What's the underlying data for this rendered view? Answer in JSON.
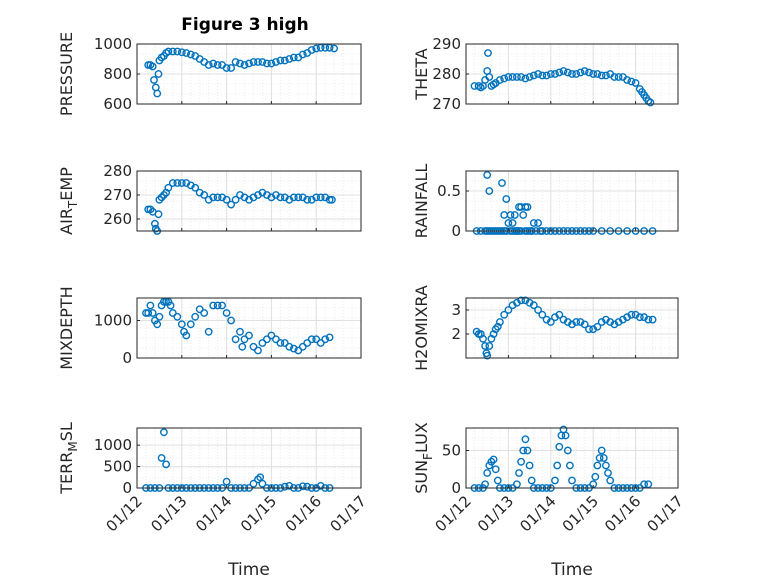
{
  "colors": {
    "marker": "#0072BD",
    "axis": "#262626",
    "grid": "#e0e0e0",
    "minorgrid": "#ececec"
  },
  "figure_title": "Figure 3 high",
  "chart_data": [
    {
      "type": "scatter",
      "id": "pressure",
      "title": "Figure 3 high",
      "ylabel": "PRESSURE",
      "ylabel_sub": "",
      "ylabel_tail": "",
      "xlabel": "",
      "xlim": [
        0,
        5
      ],
      "ylim": [
        600,
        1000
      ],
      "yticks": [
        600,
        800,
        1000
      ],
      "yticklabels": [
        "600",
        "800",
        "1000"
      ],
      "xticks": [],
      "xticklabels": [],
      "x": [
        0.25,
        0.3,
        0.35,
        0.38,
        0.42,
        0.45,
        0.48,
        0.5,
        0.55,
        0.6,
        0.65,
        0.7,
        0.8,
        0.9,
        1.0,
        1.1,
        1.2,
        1.3,
        1.4,
        1.5,
        1.6,
        1.7,
        1.8,
        1.9,
        2.0,
        2.1,
        2.2,
        2.3,
        2.4,
        2.5,
        2.6,
        2.7,
        2.8,
        2.9,
        3.0,
        3.1,
        3.2,
        3.3,
        3.4,
        3.5,
        3.6,
        3.7,
        3.8,
        3.9,
        4.0,
        4.1,
        4.2,
        4.3,
        4.4
      ],
      "y": [
        860,
        860,
        850,
        760,
        710,
        670,
        800,
        890,
        910,
        920,
        940,
        950,
        950,
        950,
        945,
        940,
        930,
        920,
        900,
        880,
        860,
        870,
        860,
        860,
        840,
        840,
        880,
        870,
        860,
        870,
        880,
        880,
        880,
        870,
        870,
        880,
        890,
        890,
        900,
        910,
        910,
        930,
        940,
        960,
        970,
        975,
        975,
        975,
        970
      ]
    },
    {
      "type": "scatter",
      "id": "theta",
      "ylabel": "THETA",
      "ylabel_sub": "",
      "ylabel_tail": "",
      "xlabel": "",
      "xlim": [
        0,
        5
      ],
      "ylim": [
        270,
        290
      ],
      "yticks": [
        270,
        280,
        290
      ],
      "yticklabels": [
        "270",
        "280",
        "290"
      ],
      "xticks": [],
      "xticklabels": [],
      "x": [
        0.2,
        0.3,
        0.35,
        0.4,
        0.45,
        0.5,
        0.52,
        0.55,
        0.6,
        0.65,
        0.7,
        0.8,
        0.9,
        1.0,
        1.1,
        1.2,
        1.3,
        1.4,
        1.5,
        1.6,
        1.7,
        1.8,
        1.9,
        2.0,
        2.1,
        2.2,
        2.3,
        2.4,
        2.5,
        2.6,
        2.7,
        2.8,
        2.9,
        3.0,
        3.1,
        3.2,
        3.3,
        3.4,
        3.5,
        3.6,
        3.7,
        3.8,
        3.9,
        4.0,
        4.1,
        4.15,
        4.2,
        4.25,
        4.3,
        4.35
      ],
      "y": [
        276,
        276,
        275.5,
        276,
        278,
        281,
        287,
        279,
        276,
        276.5,
        277,
        278,
        278.5,
        279,
        279,
        279,
        279,
        278.5,
        279,
        279.5,
        280,
        279.5,
        279.5,
        280,
        280,
        280.5,
        281,
        280.5,
        280,
        280,
        280.5,
        281,
        280.5,
        280,
        280,
        279.5,
        279.5,
        280,
        279,
        279,
        279,
        278,
        277.5,
        277,
        275,
        274,
        273,
        272,
        271,
        270.5
      ]
    },
    {
      "type": "scatter",
      "id": "air_temp",
      "ylabel": "AIR",
      "ylabel_sub": "T",
      "ylabel_tail": "EMP",
      "xlabel": "",
      "xlim": [
        0,
        5
      ],
      "ylim": [
        255,
        280
      ],
      "yticks": [
        260,
        270,
        280
      ],
      "yticklabels": [
        "260",
        "270",
        "280"
      ],
      "xticks": [],
      "xticklabels": [],
      "x": [
        0.25,
        0.3,
        0.35,
        0.4,
        0.42,
        0.45,
        0.48,
        0.5,
        0.55,
        0.6,
        0.65,
        0.7,
        0.8,
        0.9,
        1.0,
        1.1,
        1.2,
        1.3,
        1.4,
        1.5,
        1.6,
        1.7,
        1.8,
        1.9,
        2.0,
        2.1,
        2.2,
        2.3,
        2.4,
        2.5,
        2.6,
        2.7,
        2.8,
        2.9,
        3.0,
        3.1,
        3.2,
        3.3,
        3.4,
        3.5,
        3.6,
        3.7,
        3.8,
        3.9,
        4.0,
        4.1,
        4.2,
        4.3,
        4.35
      ],
      "y": [
        264,
        264,
        263,
        258,
        256,
        255,
        262,
        268,
        269,
        270,
        271,
        273,
        275,
        275,
        275,
        275,
        274,
        273,
        271,
        270,
        268,
        269,
        269,
        269,
        268,
        266,
        268,
        270,
        269,
        268,
        269,
        270,
        271,
        270,
        269,
        270,
        269,
        269,
        268,
        269,
        269,
        269,
        268,
        268,
        269,
        269,
        269,
        268,
        268
      ]
    },
    {
      "type": "scatter",
      "id": "rainfall",
      "ylabel": "RAINFALL",
      "ylabel_sub": "",
      "ylabel_tail": "",
      "xlabel": "",
      "xlim": [
        0,
        5
      ],
      "ylim": [
        0,
        0.75
      ],
      "yticks": [
        0,
        0.5
      ],
      "yticklabels": [
        "0",
        "0.5"
      ],
      "xticks": [],
      "xticklabels": [],
      "x": [
        0.25,
        0.35,
        0.45,
        0.5,
        0.55,
        0.6,
        0.65,
        0.7,
        0.75,
        0.8,
        0.85,
        0.9,
        0.95,
        1.0,
        1.05,
        1.1,
        1.15,
        1.2,
        1.25,
        1.3,
        1.35,
        1.4,
        1.45,
        1.5,
        1.55,
        1.6,
        1.65,
        1.7,
        1.8,
        1.9,
        2.0,
        2.1,
        2.2,
        2.3,
        2.4,
        2.5,
        2.6,
        2.7,
        2.8,
        2.9,
        3.0,
        3.2,
        3.4,
        3.6,
        3.8,
        4.0,
        4.2,
        4.4,
        0.5,
        0.55,
        0.85,
        0.9,
        0.95,
        1.05,
        1.1,
        1.15,
        1.2,
        1.25,
        1.3,
        1.4,
        1.45,
        1.55,
        1.75
      ],
      "y": [
        0,
        0,
        0,
        0.7,
        0.5,
        0,
        0,
        0,
        0,
        0,
        0.6,
        0.2,
        0.4,
        0.1,
        0.2,
        0.1,
        0.2,
        0,
        0.3,
        0.3,
        0.2,
        0.3,
        0.3,
        0,
        0,
        0.1,
        0,
        0.1,
        0,
        0,
        0,
        0,
        0,
        0,
        0,
        0,
        0,
        0,
        0,
        0,
        0,
        0,
        0,
        0,
        0,
        0,
        0,
        0,
        0,
        0,
        0,
        0,
        0,
        0,
        0,
        0,
        0,
        0,
        0,
        0,
        0,
        0,
        0
      ]
    },
    {
      "type": "scatter",
      "id": "mixdepth",
      "ylabel": "MIXDEPTH",
      "ylabel_sub": "",
      "ylabel_tail": "",
      "xlabel": "",
      "xlim": [
        0,
        5
      ],
      "ylim": [
        0,
        1600
      ],
      "yticks": [
        0,
        1000
      ],
      "yticklabels": [
        "0",
        "1000"
      ],
      "xticks": [],
      "xticklabels": [],
      "x": [
        0.2,
        0.25,
        0.3,
        0.35,
        0.4,
        0.45,
        0.5,
        0.55,
        0.6,
        0.65,
        0.7,
        0.75,
        0.8,
        0.9,
        1.0,
        1.05,
        1.1,
        1.2,
        1.3,
        1.4,
        1.5,
        1.6,
        1.7,
        1.8,
        1.9,
        2.0,
        2.1,
        2.2,
        2.3,
        2.35,
        2.4,
        2.5,
        2.6,
        2.7,
        2.8,
        2.9,
        3.0,
        3.1,
        3.2,
        3.3,
        3.4,
        3.5,
        3.6,
        3.7,
        3.8,
        3.9,
        4.0,
        4.1,
        4.2,
        4.3
      ],
      "y": [
        1200,
        1200,
        1400,
        1200,
        1000,
        900,
        1100,
        1400,
        1500,
        1500,
        1500,
        1400,
        1200,
        1100,
        900,
        700,
        600,
        900,
        1100,
        1300,
        1200,
        700,
        1400,
        1400,
        1400,
        1200,
        1000,
        500,
        700,
        300,
        500,
        600,
        300,
        200,
        400,
        500,
        600,
        500,
        400,
        400,
        300,
        250,
        200,
        300,
        400,
        500,
        500,
        400,
        500,
        550
      ]
    },
    {
      "type": "scatter",
      "id": "h2omixra",
      "ylabel": "H2OMIXRA",
      "ylabel_sub": "",
      "ylabel_tail": "",
      "xlabel": "",
      "xlim": [
        0,
        5
      ],
      "ylim": [
        1,
        3.5
      ],
      "yticks": [
        2,
        3
      ],
      "yticklabels": [
        "2",
        "3"
      ],
      "xticks": [],
      "xticklabels": [],
      "x": [
        0.25,
        0.3,
        0.35,
        0.4,
        0.45,
        0.48,
        0.5,
        0.55,
        0.6,
        0.65,
        0.7,
        0.75,
        0.8,
        0.9,
        1.0,
        1.1,
        1.2,
        1.3,
        1.4,
        1.5,
        1.6,
        1.7,
        1.8,
        1.9,
        2.0,
        2.1,
        2.2,
        2.3,
        2.4,
        2.5,
        2.6,
        2.7,
        2.8,
        2.9,
        3.0,
        3.1,
        3.2,
        3.3,
        3.4,
        3.5,
        3.6,
        3.7,
        3.8,
        3.9,
        4.0,
        4.1,
        4.2,
        4.3,
        4.4
      ],
      "y": [
        2.1,
        2.0,
        2.0,
        1.8,
        1.5,
        1.2,
        1.1,
        1.5,
        1.8,
        2.0,
        2.2,
        2.3,
        2.5,
        2.8,
        3.0,
        3.2,
        3.3,
        3.4,
        3.4,
        3.3,
        3.2,
        3.0,
        2.8,
        2.6,
        2.5,
        2.7,
        2.8,
        2.6,
        2.5,
        2.4,
        2.5,
        2.5,
        2.4,
        2.2,
        2.2,
        2.3,
        2.5,
        2.6,
        2.5,
        2.4,
        2.5,
        2.6,
        2.7,
        2.8,
        2.8,
        2.7,
        2.7,
        2.6,
        2.6
      ]
    },
    {
      "type": "scatter",
      "id": "terr_msl",
      "ylabel": "TERR",
      "ylabel_sub": "M",
      "ylabel_tail": "SL",
      "xlabel": "Time",
      "xlim": [
        0,
        5
      ],
      "ylim": [
        0,
        1400
      ],
      "yticks": [
        0,
        500,
        1000
      ],
      "yticklabels": [
        "0",
        "500",
        "1000"
      ],
      "xticks": [
        0,
        1,
        2,
        3,
        4,
        5
      ],
      "xticklabels": [
        "01/12",
        "01/13",
        "01/14",
        "01/15",
        "01/16",
        "01/17"
      ],
      "x": [
        0.2,
        0.3,
        0.4,
        0.5,
        0.55,
        0.6,
        0.65,
        0.7,
        0.8,
        0.9,
        1.0,
        1.1,
        1.2,
        1.3,
        1.4,
        1.5,
        1.6,
        1.7,
        1.8,
        1.9,
        2.0,
        2.1,
        2.2,
        2.3,
        2.4,
        2.5,
        2.6,
        2.7,
        2.75,
        2.8,
        2.9,
        3.0,
        3.1,
        3.2,
        3.3,
        3.4,
        3.5,
        3.6,
        3.7,
        3.8,
        3.9,
        4.0,
        4.1,
        4.2,
        4.3
      ],
      "y": [
        0,
        0,
        0,
        0,
        700,
        1300,
        550,
        0,
        0,
        0,
        0,
        0,
        0,
        0,
        0,
        0,
        0,
        0,
        0,
        0,
        150,
        0,
        0,
        0,
        0,
        0,
        100,
        200,
        250,
        100,
        0,
        0,
        0,
        0,
        30,
        50,
        0,
        0,
        40,
        30,
        0,
        0,
        50,
        0,
        0
      ]
    },
    {
      "type": "scatter",
      "id": "sun_flux",
      "ylabel": "SUN",
      "ylabel_sub": "F",
      "ylabel_tail": "LUX",
      "xlabel": "Time",
      "xlim": [
        0,
        5
      ],
      "ylim": [
        0,
        80
      ],
      "yticks": [
        0,
        50
      ],
      "yticklabels": [
        "0",
        "50"
      ],
      "xticks": [
        0,
        1,
        2,
        3,
        4,
        5
      ],
      "xticklabels": [
        "01/12",
        "01/13",
        "01/14",
        "01/15",
        "01/16",
        "01/17"
      ],
      "x": [
        0.2,
        0.3,
        0.4,
        0.45,
        0.5,
        0.55,
        0.6,
        0.65,
        0.7,
        0.75,
        0.8,
        0.9,
        1.0,
        1.1,
        1.2,
        1.25,
        1.3,
        1.35,
        1.4,
        1.45,
        1.5,
        1.55,
        1.6,
        1.7,
        1.8,
        1.9,
        2.0,
        2.1,
        2.15,
        2.2,
        2.25,
        2.3,
        2.35,
        2.4,
        2.45,
        2.5,
        2.6,
        2.7,
        2.8,
        2.9,
        3.0,
        3.05,
        3.1,
        3.15,
        3.2,
        3.25,
        3.3,
        3.35,
        3.4,
        3.5,
        3.6,
        3.7,
        3.8,
        3.9,
        4.0,
        4.1,
        4.2,
        4.3
      ],
      "y": [
        0,
        0,
        0,
        5,
        20,
        30,
        35,
        38,
        25,
        10,
        0,
        0,
        0,
        0,
        5,
        20,
        35,
        50,
        65,
        50,
        30,
        10,
        0,
        0,
        0,
        0,
        0,
        10,
        30,
        55,
        70,
        78,
        70,
        50,
        30,
        10,
        0,
        0,
        0,
        0,
        5,
        15,
        30,
        40,
        50,
        40,
        30,
        20,
        10,
        0,
        0,
        0,
        0,
        0,
        0,
        0,
        5,
        5
      ]
    }
  ]
}
